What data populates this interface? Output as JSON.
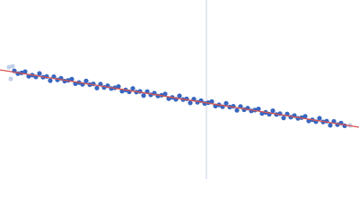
{
  "chart_data": {
    "type": "scatter",
    "xlim": [
      0,
      400
    ],
    "ylim": [
      0,
      200
    ],
    "vline": {
      "x": 230,
      "color": "#c9d1e6"
    },
    "series": [
      {
        "mode": "markers",
        "color": "#3766c0",
        "x": [
          16,
          20,
          24,
          28,
          32,
          36,
          40,
          44,
          48,
          52,
          56,
          60,
          64,
          68,
          72,
          76,
          80,
          84,
          88,
          92,
          96,
          100,
          104,
          108,
          112,
          116,
          120,
          124,
          128,
          132,
          136,
          140,
          144,
          148,
          152,
          156,
          160,
          164,
          168,
          172,
          176,
          180,
          184,
          188,
          192,
          196,
          200,
          204,
          208,
          212,
          216,
          220,
          224,
          228,
          232,
          236,
          240,
          244,
          248,
          252,
          256,
          260,
          264,
          268,
          272,
          276,
          280,
          284,
          288,
          292,
          296,
          300,
          304,
          308,
          312,
          316,
          320,
          324,
          328,
          332,
          336,
          340,
          344,
          348,
          352,
          356,
          360,
          364,
          368,
          372,
          376,
          380,
          384
        ],
        "values": [
          120.9,
          117.8,
          118.7,
          120.0,
          114.9,
          116.2,
          114.1,
          118.0,
          113.8,
          114.7,
          110.0,
          114.4,
          110.8,
          112.6,
          109.5,
          110.3,
          111.7,
          106.6,
          107.9,
          105.8,
          109.6,
          105.5,
          106.4,
          101.7,
          106.1,
          102.4,
          104.3,
          101.2,
          102.0,
          103.4,
          98.2,
          99.6,
          97.5,
          101.3,
          97.2,
          98.0,
          93.4,
          97.8,
          94.1,
          96.0,
          92.8,
          93.7,
          95.1,
          89.9,
          91.3,
          89.1,
          93.0,
          88.9,
          89.7,
          85.1,
          89.4,
          85.8,
          87.7,
          84.5,
          85.4,
          86.7,
          81.6,
          83.0,
          80.8,
          84.7,
          80.5,
          81.4,
          76.8,
          81.1,
          77.5,
          79.3,
          76.2,
          77.1,
          78.4,
          73.3,
          74.6,
          72.5,
          76.4,
          72.2,
          73.1,
          68.4,
          72.8,
          69.2,
          71.0,
          67.9,
          68.7,
          70.1,
          65.0,
          66.3,
          64.2,
          68.0,
          63.9,
          64.8,
          60.1,
          64.5,
          60.8,
          62.7,
          59.6
        ]
      },
      {
        "mode": "markers",
        "color": "#c3cfea",
        "x": [
          10,
          12,
          14,
          390
        ],
        "values": [
          125,
          112,
          126,
          60
        ]
      },
      {
        "mode": "line",
        "color": "#d9534f",
        "x": [
          0,
          400
        ],
        "values": [
          122,
          58
        ]
      }
    ]
  }
}
